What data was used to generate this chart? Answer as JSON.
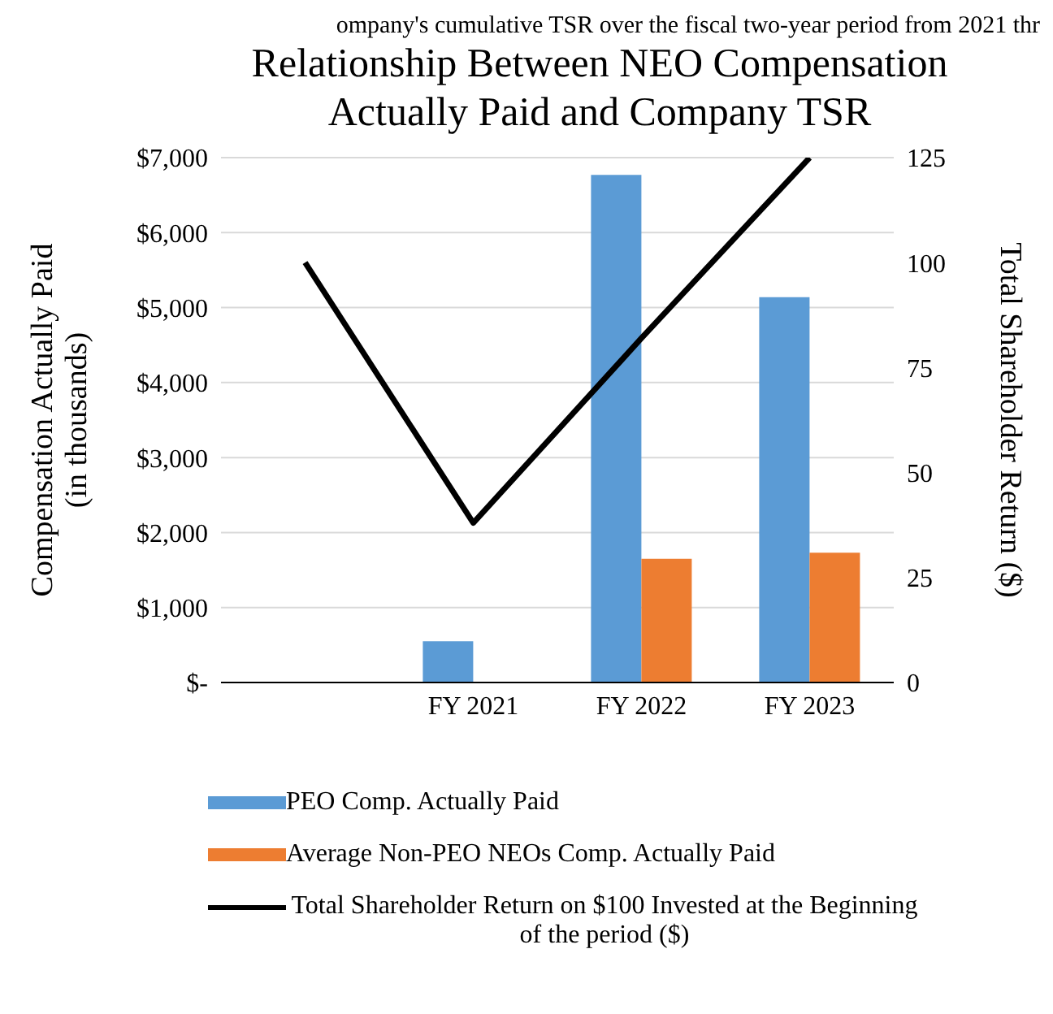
{
  "chart_data": {
    "type": "bar",
    "title": "Relationship Between NEO Compensation\nActually Paid and Company TSR",
    "annotations": [
      "ompany's cumulative TSR over the fiscal two-year period from 2021 thr"
    ],
    "ylabel": "Compensation Actually Paid\n(in thousands)",
    "y2label": "Total Shareholder Return ($)",
    "categories": [
      null,
      "FY 2021",
      "FY 2022",
      "FY 2023"
    ],
    "series": [
      {
        "name": "PEO Comp. Actually Paid",
        "color": "#5b9bd5",
        "values": [
          null,
          550,
          6770,
          5140
        ]
      },
      {
        "name": "Average Non-PEO NEOs Comp. Actually Paid",
        "color": "#ed7d31",
        "values": [
          null,
          null,
          1650,
          1730
        ]
      },
      {
        "name": "Total Shareholder Return  on $100 Invested at the Beginning of the period ($)",
        "type": "line",
        "axis": "y2",
        "color": "#000000",
        "values": [
          100,
          38,
          82,
          125
        ]
      }
    ],
    "ylim": [
      0,
      7000
    ],
    "yticks": [
      {
        "value": 0,
        "label": "$-"
      },
      {
        "value": 1000,
        "label": "$1,000"
      },
      {
        "value": 2000,
        "label": "$2,000"
      },
      {
        "value": 3000,
        "label": "$3,000"
      },
      {
        "value": 4000,
        "label": "$4,000"
      },
      {
        "value": 5000,
        "label": "$5,000"
      },
      {
        "value": 6000,
        "label": "$6,000"
      },
      {
        "value": 7000,
        "label": "$7,000"
      }
    ],
    "y2lim": [
      0,
      125
    ],
    "y2ticks": [
      0,
      25,
      50,
      75,
      100,
      125
    ],
    "grid": "y",
    "legend": "bottom",
    "marker": "none",
    "line_style": "solid"
  }
}
